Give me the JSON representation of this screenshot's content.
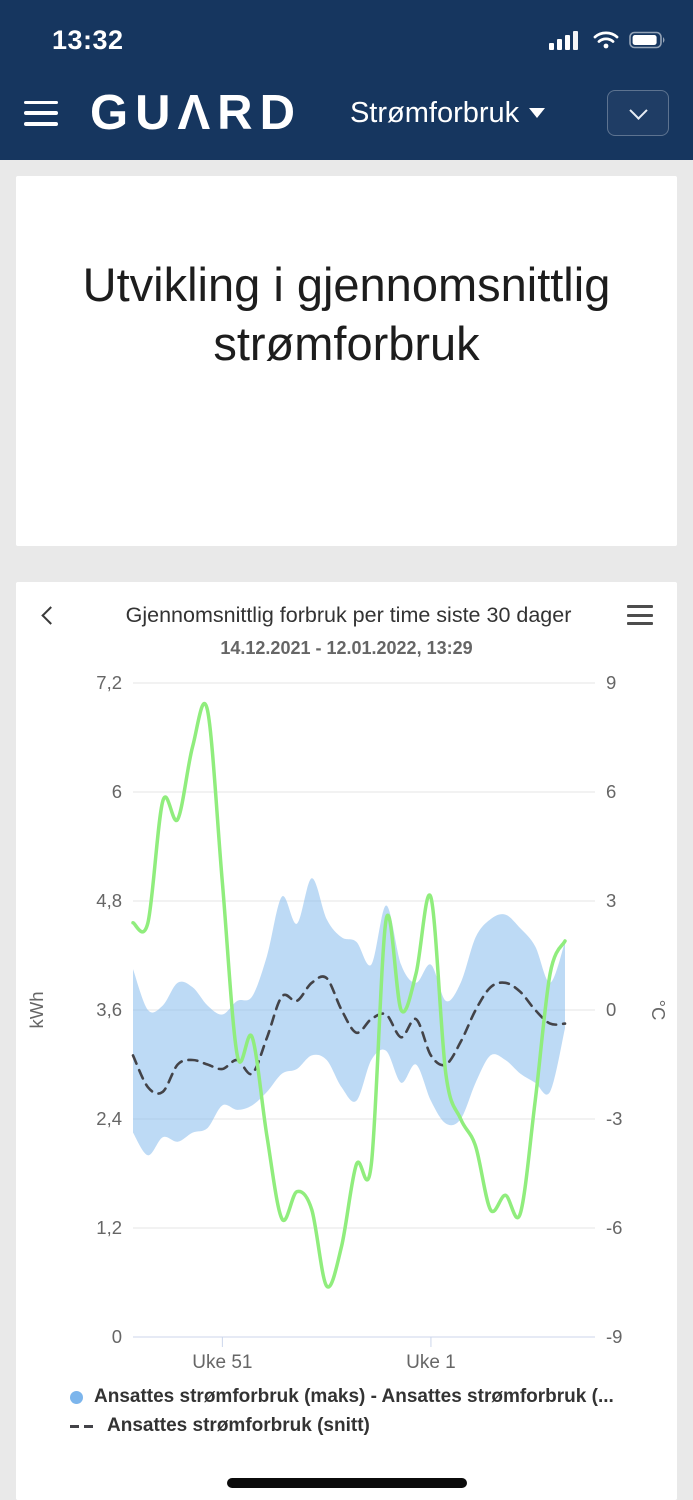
{
  "status_bar": {
    "time": "13:32"
  },
  "header": {
    "logo": "GUΛRD",
    "nav_label": "Strømforbruk"
  },
  "hero": {
    "title": "Utvikling i gjennomsnittlig strømforbruk"
  },
  "chart_card": {
    "title": "Gjennomsnittlig forbruk per time siste 30 dager",
    "subtitle": "14.12.2021 - 12.01.2022, 13:29",
    "legend": [
      {
        "label": "Ansattes strømforbruk (maks) - Ansattes strømforbruk (...",
        "marker": "circle",
        "color": "#7cb5ec"
      },
      {
        "label": "Ansattes strømforbruk (snitt)",
        "marker": "dash",
        "color": "#434348"
      }
    ]
  },
  "chart_data": {
    "type": "line",
    "title": "Gjennomsnittlig forbruk per time siste 30 dager",
    "subtitle": "14.12.2021 - 12.01.2022, 13:29",
    "grid": true,
    "legend_position": "bottom",
    "x": {
      "n_points": 30,
      "ticks": [
        {
          "i": 6,
          "label": "Uke 51"
        },
        {
          "i": 20,
          "label": "Uke 1"
        }
      ]
    },
    "y_left": {
      "title": "kWh",
      "range": [
        0,
        7.2
      ],
      "ticks": [
        {
          "v": 0,
          "label": "0"
        },
        {
          "v": 1.2,
          "label": "1,2"
        },
        {
          "v": 2.4,
          "label": "2,4"
        },
        {
          "v": 3.6,
          "label": "3,6"
        },
        {
          "v": 4.8,
          "label": "4,8"
        },
        {
          "v": 6,
          "label": "6"
        },
        {
          "v": 7.2,
          "label": "7,2"
        }
      ]
    },
    "y_right": {
      "title": "°C",
      "range": [
        -9,
        9
      ],
      "ticks": [
        {
          "v": -9,
          "label": "-9"
        },
        {
          "v": -6,
          "label": "-6"
        },
        {
          "v": -3,
          "label": "-3"
        },
        {
          "v": 0,
          "label": "0"
        },
        {
          "v": 3,
          "label": "3"
        },
        {
          "v": 6,
          "label": "6"
        },
        {
          "v": 9,
          "label": "9"
        }
      ]
    },
    "series": [
      {
        "name": "Ansattes strømforbruk (maks) - Ansattes strømforbruk (...",
        "type": "arearange",
        "axis": "left",
        "color": "#7cb5ec",
        "fill_opacity": 0.5,
        "max": [
          4.05,
          3.6,
          3.65,
          3.9,
          3.85,
          3.65,
          3.55,
          3.7,
          3.75,
          4.2,
          4.85,
          4.55,
          5.05,
          4.6,
          4.4,
          4.35,
          4.1,
          4.75,
          4.1,
          3.9,
          4.1,
          3.7,
          3.9,
          4.4,
          4.6,
          4.65,
          4.5,
          4.3,
          3.9,
          4.35
        ],
        "min": [
          2.25,
          2.0,
          2.2,
          2.15,
          2.25,
          2.3,
          2.55,
          2.5,
          2.55,
          2.7,
          2.9,
          2.95,
          3.1,
          3.05,
          2.75,
          2.6,
          3.05,
          3.15,
          2.8,
          3.0,
          2.6,
          2.35,
          2.4,
          2.8,
          3.1,
          3.05,
          2.9,
          2.8,
          2.7,
          3.4
        ]
      },
      {
        "name": "Ansattes strømforbruk (snitt)",
        "type": "line",
        "style": "dashed",
        "axis": "left",
        "color": "#434348",
        "values": [
          3.1,
          2.75,
          2.7,
          3.0,
          3.05,
          3.0,
          2.95,
          3.05,
          2.9,
          3.3,
          3.75,
          3.7,
          3.9,
          3.95,
          3.6,
          3.35,
          3.5,
          3.55,
          3.3,
          3.5,
          3.1,
          3.0,
          3.25,
          3.6,
          3.85,
          3.9,
          3.8,
          3.6,
          3.45,
          3.45
        ]
      },
      {
        "name": "",
        "type": "line",
        "style": "solid",
        "axis": "right",
        "color": "#90ed7d",
        "values": [
          2.4,
          2.4,
          5.75,
          5.25,
          7.25,
          8.25,
          3.5,
          -1.25,
          -0.75,
          -3.5,
          -5.75,
          -5.0,
          -5.5,
          -7.6,
          -6.5,
          -4.25,
          -4.25,
          2.5,
          0.0,
          1.0,
          3.1,
          -1.75,
          -3.0,
          -3.75,
          -5.5,
          -5.1,
          -5.6,
          -2.5,
          1.0,
          1.9
        ]
      }
    ]
  }
}
